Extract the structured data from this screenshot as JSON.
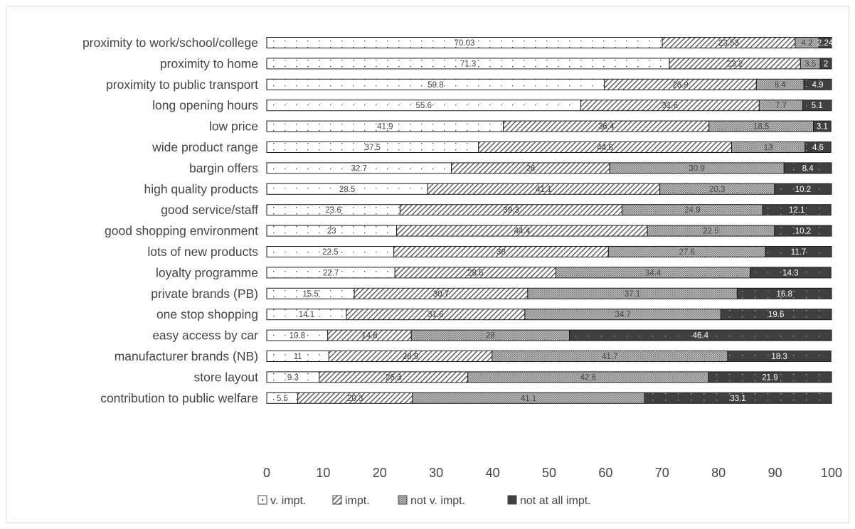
{
  "chart_data": {
    "type": "bar",
    "orientation": "horizontal",
    "stacked": true,
    "categories": [
      "proximity to work/school/college",
      "proximity to home",
      "proximity to public transport",
      "long opening hours",
      "low price",
      "wide product range",
      "bargin offers",
      "high quality products",
      "good service/staff",
      "good shopping environment",
      "lots of new products",
      "loyalty programme",
      "private brands (PB)",
      "one stop shopping",
      "easy access by car",
      "manufacturer brands (NB)",
      "store layout",
      "contribution to public welfare"
    ],
    "series": [
      {
        "name": "v. impt.",
        "pattern": "dots",
        "values": [
          70.03,
          71.3,
          59.8,
          55.6,
          41.9,
          37.5,
          32.7,
          28.5,
          23.6,
          23,
          22.5,
          22.7,
          15.5,
          14.1,
          10.8,
          11,
          9.3,
          5.5
        ]
      },
      {
        "name": "impt.",
        "pattern": "hatch",
        "values": [
          23.53,
          23.2,
          26.9,
          31.6,
          36.4,
          44.8,
          28,
          41.1,
          39.3,
          44.4,
          38,
          28.5,
          30.7,
          31.6,
          14.8,
          28.9,
          26.3,
          20.3
        ]
      },
      {
        "name": "not v. impt.",
        "pattern": "crosshatch",
        "values": [
          4.2,
          3.5,
          8.4,
          7.7,
          18.5,
          13,
          30.9,
          20.3,
          24.9,
          22.5,
          27.8,
          34.4,
          37.1,
          34.7,
          28,
          41.7,
          42.6,
          41.1
        ]
      },
      {
        "name": "not at all impt.",
        "pattern": "solid",
        "values": [
          2.24,
          2,
          4.9,
          5.1,
          3.1,
          4.6,
          8.4,
          10.2,
          12.1,
          10.2,
          11.7,
          14.3,
          16.8,
          19.6,
          46.4,
          18.3,
          21.9,
          33.1
        ]
      }
    ],
    "labels": [
      [
        "70.03",
        "23.53",
        "4.2",
        "2.24"
      ],
      [
        "71.3",
        "23.2",
        "3.5",
        "2"
      ],
      [
        "59.8",
        "26.9",
        "8.4",
        "4.9"
      ],
      [
        "55.6",
        "31.6",
        "7.7",
        "5.1"
      ],
      [
        "41.9",
        "36.4",
        "18.5",
        "3.1"
      ],
      [
        "37.5",
        "44.8",
        "13",
        "4.6"
      ],
      [
        "32.7",
        "28",
        "30.9",
        "8.4"
      ],
      [
        "28.5",
        "41.1",
        "20.3",
        "10.2"
      ],
      [
        "23.6",
        "39.3",
        "24.9",
        "12.1"
      ],
      [
        "23",
        "44.4",
        "22.5",
        "10.2"
      ],
      [
        "22.5",
        "38",
        "27.8",
        "11.7"
      ],
      [
        "22.7",
        "28.5",
        "34.4",
        "14.3"
      ],
      [
        "15.5",
        "30.7",
        "37.1",
        "16.8"
      ],
      [
        "14.1",
        "31.6",
        "34.7",
        "19.6"
      ],
      [
        "10.8",
        "14.8",
        "28",
        "46.4"
      ],
      [
        "11",
        "28.9",
        "41.7",
        "18.3"
      ],
      [
        "9.3",
        "26.3",
        "42.6",
        "21.9"
      ],
      [
        "5.5",
        "20.3",
        "41.1",
        "33.1"
      ]
    ],
    "xlim": [
      0,
      100
    ],
    "xticks": [
      "0",
      "10",
      "20",
      "30",
      "40",
      "50",
      "60",
      "70",
      "80",
      "90",
      "100"
    ],
    "grid": false,
    "legend": "bottom",
    "title": "",
    "xlabel": "",
    "ylabel": ""
  }
}
